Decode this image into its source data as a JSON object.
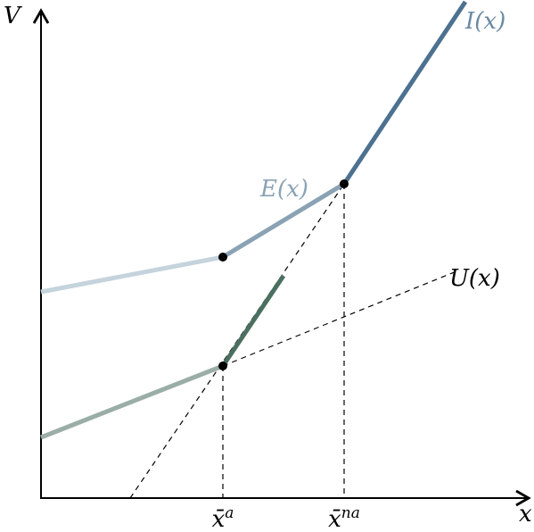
{
  "axes": {
    "y_label": "V",
    "x_label": "x"
  },
  "ticks": [
    {
      "base": "x̄",
      "sup": "a"
    },
    {
      "base": "x̄",
      "sup": "na"
    }
  ],
  "curves": {
    "I": "I(x)",
    "E": "E(x)",
    "U": "U(x)"
  }
}
